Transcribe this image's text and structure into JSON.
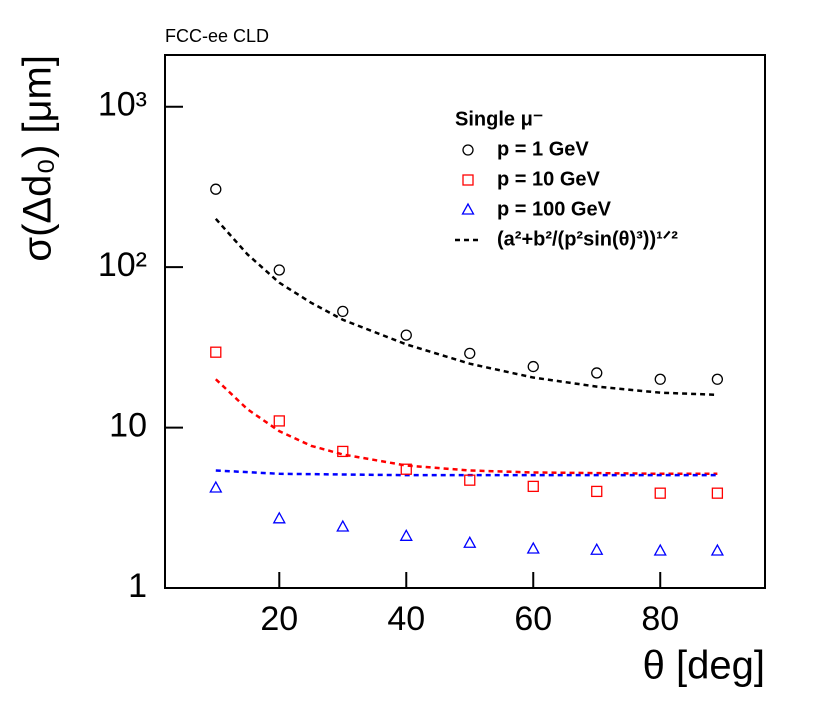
{
  "chart_data": {
    "type": "scatter",
    "experiment": "FCC-ee CLD",
    "x_label": "θ [deg]",
    "y_label": "σ(Δd₀) [μm]",
    "log_y": true,
    "xlim": [
      2,
      96.5
    ],
    "ylim": [
      1,
      2100
    ],
    "xticks": [
      20,
      40,
      60,
      80
    ],
    "yticks": [
      1,
      10,
      {
        "value": 100,
        "label": "10²"
      },
      {
        "value": 1000,
        "label": "10³"
      }
    ],
    "legend_title": "Single μ⁻",
    "x": [
      10,
      20,
      30,
      40,
      50,
      60,
      70,
      80,
      89
    ],
    "series": [
      {
        "name": "p = 1 GeV",
        "color": "#000000",
        "marker": "circle",
        "values": [
          306,
          96,
          53,
          37.7,
          29,
          24,
          21.9,
          20,
          20
        ]
      },
      {
        "name": "p = 10 GeV",
        "color": "#ff0000",
        "marker": "square",
        "values": [
          29.5,
          11,
          7.1,
          5.5,
          4.7,
          4.3,
          4.0,
          3.9,
          3.9
        ]
      },
      {
        "name": "p = 100 GeV",
        "color": "#0000ff",
        "marker": "triangle",
        "values": [
          4.2,
          2.7,
          2.4,
          2.1,
          1.9,
          1.75,
          1.72,
          1.7,
          1.7
        ]
      }
    ],
    "fit": {
      "label": "(a²+b²/(p²sin(θ)³))¹ᐟ²",
      "legend_color": "#000000",
      "curves": [
        {
          "color": "#000000",
          "x": [
            10,
            15,
            20,
            25,
            30,
            40,
            50,
            60,
            70,
            80,
            89
          ],
          "values": [
            200,
            120,
            80,
            60,
            47,
            33,
            25,
            20.5,
            18,
            16.5,
            16
          ]
        },
        {
          "color": "#ff0000",
          "x": [
            10,
            15,
            20,
            25,
            30,
            40,
            50,
            60,
            70,
            80,
            89
          ],
          "values": [
            20,
            13,
            9.5,
            7.7,
            6.8,
            5.8,
            5.4,
            5.25,
            5.2,
            5.15,
            5.15
          ]
        },
        {
          "color": "#0000ff",
          "x": [
            10,
            20,
            30,
            40,
            50,
            60,
            70,
            80,
            89
          ],
          "values": [
            5.4,
            5.15,
            5.1,
            5.05,
            5.05,
            5.05,
            5.05,
            5.05,
            5.05
          ]
        }
      ]
    }
  }
}
